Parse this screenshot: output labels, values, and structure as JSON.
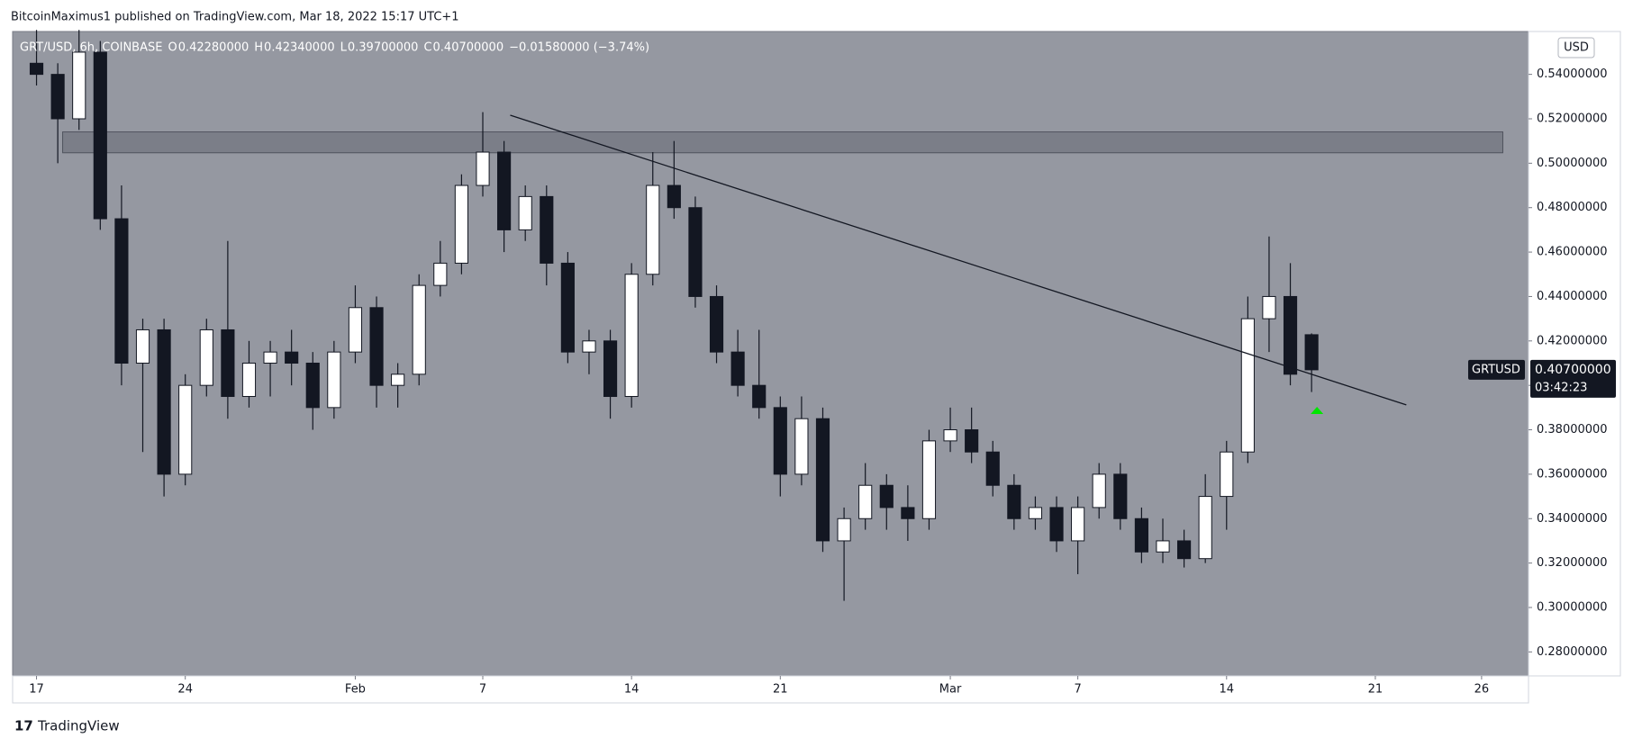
{
  "header": {
    "title": "BitcoinMaximus1 published on TradingView.com, Mar 18, 2022 15:17 UTC+1"
  },
  "legend": {
    "symbol": "GRT/USD, 6h, COINBASE",
    "fields": [
      {
        "key": "O",
        "text": "0.42280000"
      },
      {
        "key": "H",
        "text": "0.42340000"
      },
      {
        "key": "L",
        "text": "0.39700000"
      },
      {
        "key": "C",
        "text": "0.40700000"
      }
    ],
    "change": "−0.01580000 (−3.74%)"
  },
  "footer": {
    "brand": "TradingView"
  },
  "chart_data": {
    "type": "candlestick",
    "currency": "USD",
    "symbol": "GRTUSD",
    "price_label": {
      "value": 0.407,
      "label": "0.40700000"
    },
    "countdown": "03:42:23",
    "x": [
      "2022-01-17",
      "2022-01-18",
      "2022-01-19",
      "2022-01-20",
      "2022-01-21",
      "2022-01-22",
      "2022-01-23",
      "2022-01-24",
      "2022-01-25",
      "2022-01-26",
      "2022-01-27",
      "2022-01-28",
      "2022-01-29",
      "2022-01-30",
      "2022-01-31",
      "2022-02-01",
      "2022-02-02",
      "2022-02-03",
      "2022-02-04",
      "2022-02-05",
      "2022-02-06",
      "2022-02-07",
      "2022-02-08",
      "2022-02-09",
      "2022-02-10",
      "2022-02-11",
      "2022-02-12",
      "2022-02-13",
      "2022-02-14",
      "2022-02-15",
      "2022-02-16",
      "2022-02-17",
      "2022-02-18",
      "2022-02-19",
      "2022-02-20",
      "2022-02-21",
      "2022-02-22",
      "2022-02-23",
      "2022-02-24",
      "2022-02-25",
      "2022-02-26",
      "2022-02-27",
      "2022-02-28",
      "2022-03-01",
      "2022-03-02",
      "2022-03-03",
      "2022-03-04",
      "2022-03-05",
      "2022-03-06",
      "2022-03-07",
      "2022-03-08",
      "2022-03-09",
      "2022-03-10",
      "2022-03-11",
      "2022-03-12",
      "2022-03-13",
      "2022-03-14",
      "2022-03-15",
      "2022-03-16",
      "2022-03-17",
      "2022-03-18"
    ],
    "open": [
      0.545,
      0.54,
      0.52,
      0.55,
      0.475,
      0.41,
      0.425,
      0.36,
      0.4,
      0.425,
      0.395,
      0.41,
      0.415,
      0.41,
      0.39,
      0.415,
      0.435,
      0.4,
      0.405,
      0.445,
      0.455,
      0.49,
      0.505,
      0.47,
      0.485,
      0.455,
      0.415,
      0.42,
      0.395,
      0.45,
      0.49,
      0.48,
      0.44,
      0.415,
      0.4,
      0.39,
      0.36,
      0.385,
      0.33,
      0.34,
      0.355,
      0.345,
      0.34,
      0.375,
      0.38,
      0.37,
      0.355,
      0.34,
      0.345,
      0.33,
      0.345,
      0.36,
      0.34,
      0.325,
      0.33,
      0.322,
      0.35,
      0.37,
      0.43,
      0.44,
      0.4228
    ],
    "high": [
      0.56,
      0.545,
      0.56,
      0.555,
      0.49,
      0.43,
      0.43,
      0.405,
      0.43,
      0.465,
      0.42,
      0.42,
      0.425,
      0.415,
      0.42,
      0.445,
      0.44,
      0.41,
      0.45,
      0.465,
      0.495,
      0.523,
      0.51,
      0.49,
      0.49,
      0.46,
      0.425,
      0.425,
      0.455,
      0.505,
      0.51,
      0.485,
      0.445,
      0.425,
      0.425,
      0.395,
      0.395,
      0.39,
      0.345,
      0.365,
      0.36,
      0.355,
      0.38,
      0.39,
      0.39,
      0.375,
      0.36,
      0.35,
      0.35,
      0.35,
      0.365,
      0.365,
      0.345,
      0.34,
      0.335,
      0.36,
      0.375,
      0.44,
      0.467,
      0.455,
      0.4234
    ],
    "low": [
      0.535,
      0.5,
      0.515,
      0.47,
      0.4,
      0.37,
      0.35,
      0.355,
      0.395,
      0.385,
      0.39,
      0.395,
      0.4,
      0.38,
      0.385,
      0.41,
      0.39,
      0.39,
      0.4,
      0.44,
      0.45,
      0.485,
      0.46,
      0.465,
      0.445,
      0.41,
      0.405,
      0.385,
      0.39,
      0.445,
      0.475,
      0.435,
      0.41,
      0.395,
      0.385,
      0.35,
      0.355,
      0.325,
      0.303,
      0.335,
      0.335,
      0.33,
      0.335,
      0.37,
      0.365,
      0.35,
      0.335,
      0.335,
      0.325,
      0.315,
      0.34,
      0.335,
      0.32,
      0.32,
      0.318,
      0.32,
      0.335,
      0.365,
      0.415,
      0.4,
      0.397
    ],
    "close": [
      0.54,
      0.52,
      0.55,
      0.475,
      0.41,
      0.425,
      0.36,
      0.4,
      0.425,
      0.395,
      0.41,
      0.415,
      0.41,
      0.39,
      0.415,
      0.435,
      0.4,
      0.405,
      0.445,
      0.455,
      0.49,
      0.505,
      0.47,
      0.485,
      0.455,
      0.415,
      0.42,
      0.395,
      0.45,
      0.49,
      0.48,
      0.44,
      0.415,
      0.4,
      0.39,
      0.36,
      0.385,
      0.33,
      0.34,
      0.355,
      0.345,
      0.34,
      0.375,
      0.38,
      0.37,
      0.355,
      0.34,
      0.345,
      0.33,
      0.345,
      0.36,
      0.34,
      0.325,
      0.33,
      0.322,
      0.35,
      0.37,
      0.43,
      0.44,
      0.405,
      0.407
    ],
    "trendline": {
      "x": [
        "2022-02-08T07:00",
        "2022-03-22T11:00"
      ],
      "y": [
        0.5216,
        0.3912
      ]
    },
    "zone": {
      "x": [
        "2022-01-18T05:30",
        "2022-03-27T00:00"
      ],
      "y": [
        0.5047,
        0.5141
      ]
    },
    "xlim": [
      "2022-01-15T21:00",
      "2022-03-28T05:00"
    ],
    "xticks": [
      {
        "value": "2022-01-17",
        "label": "17"
      },
      {
        "value": "2022-01-24",
        "label": "24"
      },
      {
        "value": "2022-02-01",
        "label": "Feb"
      },
      {
        "value": "2022-02-07",
        "label": "7"
      },
      {
        "value": "2022-02-14",
        "label": "14"
      },
      {
        "value": "2022-02-21",
        "label": "21"
      },
      {
        "value": "2022-03-01",
        "label": "Mar"
      },
      {
        "value": "2022-03-07",
        "label": "7"
      },
      {
        "value": "2022-03-14",
        "label": "14"
      },
      {
        "value": "2022-03-21",
        "label": "21"
      },
      {
        "value": "2022-03-26",
        "label": "26"
      }
    ],
    "ylim": [
      0.2692,
      0.5593
    ],
    "yticks": [
      {
        "value": 0.28,
        "label": "0.28000000"
      },
      {
        "value": 0.3,
        "label": "0.30000000"
      },
      {
        "value": 0.32,
        "label": "0.32000000"
      },
      {
        "value": 0.34,
        "label": "0.34000000"
      },
      {
        "value": 0.36,
        "label": "0.36000000"
      },
      {
        "value": 0.38,
        "label": "0.38000000"
      },
      {
        "value": 0.4,
        "label": "0.40000000"
      },
      {
        "value": 0.42,
        "label": "0.42000000"
      },
      {
        "value": 0.44,
        "label": "0.44000000"
      },
      {
        "value": 0.46,
        "label": "0.46000000"
      },
      {
        "value": 0.48,
        "label": "0.48000000"
      },
      {
        "value": 0.5,
        "label": "0.50000000"
      },
      {
        "value": 0.52,
        "label": "0.52000000"
      },
      {
        "value": 0.54,
        "label": "0.54000000"
      }
    ],
    "up_color": "#ffffff",
    "down_color": "#131722",
    "background": "#9598a1"
  }
}
